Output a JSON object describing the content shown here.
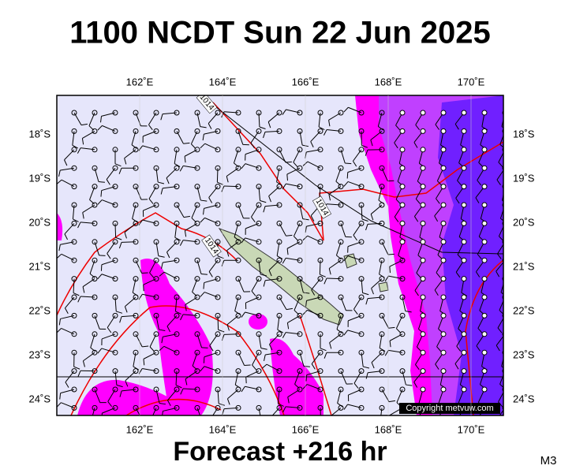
{
  "title": "1100 NCDT Sun 22 Jun 2025",
  "lon_labels": [
    "162˚E",
    "164˚E",
    "166˚E",
    "168˚E",
    "170˚E"
  ],
  "lat_labels": [
    "18˚S",
    "19˚S",
    "20˚S",
    "21˚S",
    "22˚S",
    "23˚S",
    "24˚S"
  ],
  "isobar_labels": [
    "1014",
    "1014",
    "1014"
  ],
  "copyright": "Copyright metvuw.com",
  "forecast": "Forecast +216 hr",
  "model": "M3"
}
